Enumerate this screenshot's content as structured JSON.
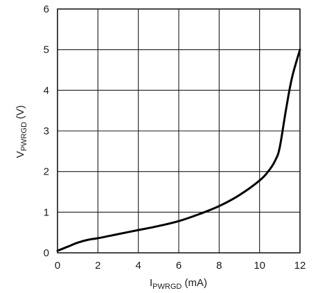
{
  "chart_data": {
    "type": "line",
    "xlabel": {
      "main": "I",
      "sub": "PWRGD",
      "unit": " (mA)"
    },
    "ylabel": {
      "main": "V",
      "sub": "PWRGD",
      "unit": " (V)"
    },
    "xlim": [
      0,
      12
    ],
    "ylim": [
      0,
      6
    ],
    "xticks": [
      "0",
      "2",
      "4",
      "6",
      "8",
      "10",
      "12"
    ],
    "yticks": [
      "0",
      "1",
      "2",
      "3",
      "4",
      "5",
      "6"
    ],
    "grid": true,
    "series": [
      {
        "color": "#000000",
        "points": [
          [
            0,
            0.05
          ],
          [
            0.5,
            0.15
          ],
          [
            1,
            0.25
          ],
          [
            1.5,
            0.32
          ],
          [
            2,
            0.36
          ],
          [
            3,
            0.46
          ],
          [
            4,
            0.56
          ],
          [
            5,
            0.66
          ],
          [
            6,
            0.78
          ],
          [
            7,
            0.95
          ],
          [
            8,
            1.15
          ],
          [
            9,
            1.42
          ],
          [
            10,
            1.78
          ],
          [
            10.5,
            2.05
          ],
          [
            10.8,
            2.3
          ],
          [
            11,
            2.6
          ],
          [
            11.3,
            3.5
          ],
          [
            11.6,
            4.3
          ],
          [
            12,
            5.0
          ]
        ]
      }
    ]
  }
}
